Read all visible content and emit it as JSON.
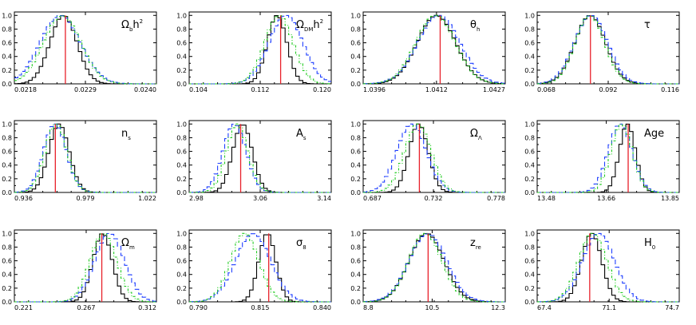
{
  "figure": {
    "description_none": "",
    "colors": {
      "line_black": "#000000",
      "line_blue_dashed": "#1f3fff",
      "line_green_dotdash": "#22cc22",
      "marker_red": "#e8202a"
    },
    "y_ticks": [
      "0.0",
      "0.2",
      "0.4",
      "0.6",
      "0.8",
      "1.0"
    ]
  },
  "chart_data": [
    {
      "type": "line",
      "label": "Ω_b h²",
      "label_main": "Ω",
      "label_sub": "b",
      "label_tail": "h",
      "label_sup": "2",
      "xlim": [
        0.0218,
        0.024
      ],
      "ylim": [
        0,
        1.05
      ],
      "xticks": [
        "0.0218",
        "0.0229",
        "0.0240"
      ],
      "marker": 0.02259,
      "series": [
        {
          "style": "black",
          "mu": 0.02256,
          "sigma": 0.00021
        },
        {
          "style": "blue_dashed",
          "mu": 0.02251,
          "sigma": 0.00031
        },
        {
          "style": "green_dotdash",
          "mu": 0.02254,
          "sigma": 0.00029
        }
      ]
    },
    {
      "type": "line",
      "label": "Ω_DM h²",
      "label_main": "Ω",
      "label_sub": "DM",
      "label_tail": "h",
      "label_sup": "2",
      "xlim": [
        0.104,
        0.12
      ],
      "ylim": [
        0,
        1.05
      ],
      "xticks": [
        "0.104",
        "0.112",
        "0.120"
      ],
      "marker": 0.1143,
      "series": [
        {
          "style": "black",
          "mu": 0.1139,
          "sigma": 0.0011
        },
        {
          "style": "blue_dashed",
          "mu": 0.1149,
          "sigma": 0.0019
        },
        {
          "style": "green_dotdash",
          "mu": 0.1141,
          "sigma": 0.0016
        }
      ]
    },
    {
      "type": "line",
      "label": "θ_h",
      "label_main": "θ",
      "label_sub": "h",
      "label_tail": "",
      "label_sup": "",
      "xlim": [
        1.0396,
        1.0427
      ],
      "ylim": [
        0,
        1.05
      ],
      "xticks": [
        "1.0396",
        "1.0412",
        "1.0427"
      ],
      "marker": 1.04128,
      "series": [
        {
          "style": "black",
          "mu": 1.0412,
          "sigma": 0.00042
        },
        {
          "style": "blue_dashed",
          "mu": 1.04125,
          "sigma": 0.00046
        },
        {
          "style": "green_dotdash",
          "mu": 1.04118,
          "sigma": 0.00043
        }
      ]
    },
    {
      "type": "line",
      "label": "τ",
      "label_main": "τ",
      "label_sub": "",
      "label_tail": "",
      "label_sup": "",
      "xlim": [
        0.068,
        0.116
      ],
      "ylim": [
        0,
        1.05
      ],
      "xticks": [
        "0.068",
        "0.092",
        "0.116"
      ],
      "marker": 0.086,
      "series": [
        {
          "style": "black",
          "mu": 0.0859,
          "sigma": 0.0052
        },
        {
          "style": "blue_dashed",
          "mu": 0.0862,
          "sigma": 0.0056
        },
        {
          "style": "green_dotdash",
          "mu": 0.0858,
          "sigma": 0.005
        }
      ]
    },
    {
      "type": "line",
      "label": "n_s",
      "label_main": "n",
      "label_sub": "s",
      "label_tail": "",
      "label_sup": "",
      "xlim": [
        0.936,
        1.022
      ],
      "ylim": [
        0,
        1.05
      ],
      "xticks": [
        "0.936",
        "0.979",
        "1.022"
      ],
      "marker": 0.9608,
      "series": [
        {
          "style": "black",
          "mu": 0.963,
          "sigma": 0.0062
        },
        {
          "style": "blue_dashed",
          "mu": 0.9605,
          "sigma": 0.0069
        },
        {
          "style": "green_dotdash",
          "mu": 0.9612,
          "sigma": 0.0066
        }
      ]
    },
    {
      "type": "line",
      "label": "A_s",
      "label_main": "A",
      "label_sub": "s",
      "label_tail": "",
      "label_sup": "",
      "xlim": [
        2.98,
        3.14
      ],
      "ylim": [
        0,
        1.05
      ],
      "xticks": [
        "2.98",
        "3.06",
        "3.14"
      ],
      "marker": 3.038,
      "series": [
        {
          "style": "black",
          "mu": 3.04,
          "sigma": 0.011
        },
        {
          "style": "blue_dashed",
          "mu": 3.031,
          "sigma": 0.013
        },
        {
          "style": "green_dotdash",
          "mu": 3.034,
          "sigma": 0.012
        }
      ]
    },
    {
      "type": "line",
      "label": "Ω_Λ",
      "label_main": "Ω",
      "label_sub": "Λ",
      "label_tail": "",
      "label_sup": "",
      "xlim": [
        0.687,
        0.778
      ],
      "ylim": [
        0,
        1.05
      ],
      "xticks": [
        "0.687",
        "0.732",
        "0.778"
      ],
      "marker": 0.723,
      "series": [
        {
          "style": "black",
          "mu": 0.7225,
          "sigma": 0.0062
        },
        {
          "style": "blue_dashed",
          "mu": 0.718,
          "sigma": 0.0095
        },
        {
          "style": "green_dotdash",
          "mu": 0.722,
          "sigma": 0.0085
        }
      ]
    },
    {
      "type": "line",
      "label": "Age",
      "label_main": "Age",
      "label_sub": "",
      "label_tail": "",
      "label_sup": "",
      "xlim": [
        13.48,
        13.85
      ],
      "ylim": [
        0,
        1.05
      ],
      "xticks": [
        "13.48",
        "13.66",
        "13.85"
      ],
      "marker": 13.717,
      "series": [
        {
          "style": "black",
          "mu": 13.715,
          "sigma": 0.021
        },
        {
          "style": "blue_dashed",
          "mu": 13.696,
          "sigma": 0.031
        },
        {
          "style": "green_dotdash",
          "mu": 13.7,
          "sigma": 0.028
        }
      ]
    },
    {
      "type": "line",
      "label": "Ω_m",
      "label_main": "Ω",
      "label_sub": "m",
      "label_tail": "",
      "label_sup": "",
      "xlim": [
        0.221,
        0.312
      ],
      "ylim": [
        0,
        1.05
      ],
      "xticks": [
        "0.221",
        "0.267",
        "0.312"
      ],
      "marker": 0.277,
      "series": [
        {
          "style": "black",
          "mu": 0.2775,
          "sigma": 0.0062
        },
        {
          "style": "blue_dashed",
          "mu": 0.282,
          "sigma": 0.0095
        },
        {
          "style": "green_dotdash",
          "mu": 0.278,
          "sigma": 0.0085
        }
      ]
    },
    {
      "type": "line",
      "label": "σ_8",
      "label_main": "σ",
      "label_sub": "8",
      "label_tail": "",
      "label_sup": "",
      "xlim": [
        0.79,
        0.84
      ],
      "ylim": [
        0,
        1.05
      ],
      "xticks": [
        "0.790",
        "0.815",
        "0.840"
      ],
      "marker": 0.818,
      "series": [
        {
          "style": "black",
          "mu": 0.8175,
          "sigma": 0.003
        },
        {
          "style": "blue_dashed",
          "mu": 0.8125,
          "sigma": 0.0062
        },
        {
          "style": "green_dotdash",
          "mu": 0.8095,
          "sigma": 0.005
        }
      ]
    },
    {
      "type": "line",
      "label": "z_re",
      "label_main": "z",
      "label_sub": "re",
      "label_tail": "",
      "label_sup": "",
      "xlim": [
        8.8,
        12.3
      ],
      "ylim": [
        0,
        1.05
      ],
      "xticks": [
        "8.8",
        "10.5",
        "12.3"
      ],
      "marker": 10.4,
      "series": [
        {
          "style": "black",
          "mu": 10.36,
          "sigma": 0.43
        },
        {
          "style": "blue_dashed",
          "mu": 10.39,
          "sigma": 0.46
        },
        {
          "style": "green_dotdash",
          "mu": 10.33,
          "sigma": 0.41
        }
      ]
    },
    {
      "type": "line",
      "label": "H_0",
      "label_main": "H",
      "label_sub": "0",
      "label_tail": "",
      "label_sup": "",
      "xlim": [
        67.4,
        74.7
      ],
      "ylim": [
        0,
        1.05
      ],
      "xticks": [
        "67.4",
        "71.1",
        "74.7"
      ],
      "marker": 70.1,
      "series": [
        {
          "style": "black",
          "mu": 70.2,
          "sigma": 0.52
        },
        {
          "style": "blue_dashed",
          "mu": 70.55,
          "sigma": 0.82
        },
        {
          "style": "green_dotdash",
          "mu": 70.25,
          "sigma": 0.72
        }
      ]
    }
  ]
}
